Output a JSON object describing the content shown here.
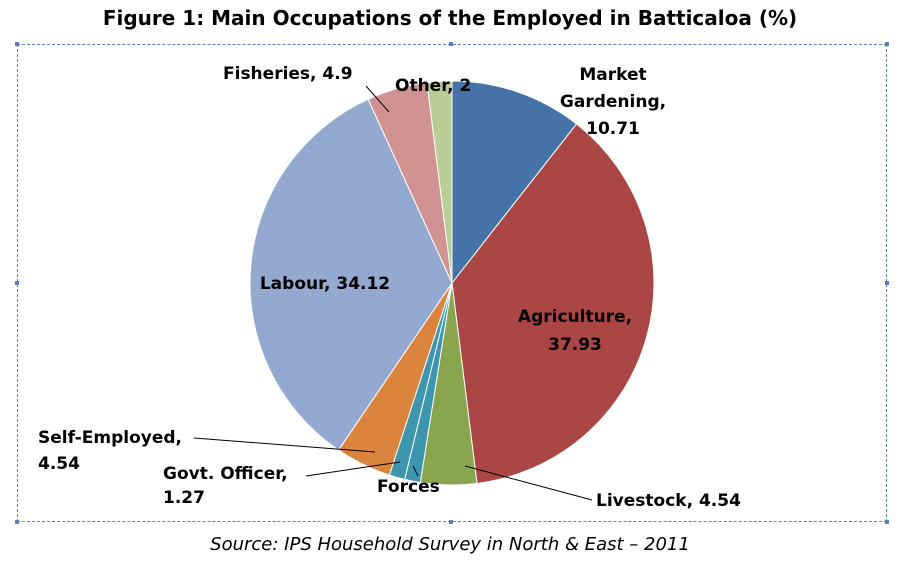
{
  "chart_data": {
    "type": "pie",
    "title": "Figure 1: Main Occupations of the Employed in Batticaloa (%)",
    "source": "Source: IPS Household Survey in North & East – 2011",
    "slices": [
      {
        "name": "Market Gardening",
        "value": 10.71,
        "label_lines": [
          "Market",
          "Gardening,",
          "10.71"
        ],
        "color": "#4572A7"
      },
      {
        "name": "Agriculture",
        "value": 37.93,
        "label_lines": [
          "Agriculture,",
          "37.93"
        ],
        "color": "#AA4643"
      },
      {
        "name": "Livestock",
        "value": 4.54,
        "label_lines": [
          "Livestock, 4.54"
        ],
        "color": "#89A54E"
      },
      {
        "name": "Forces",
        "value": 1.27,
        "label_lines": [
          "Forces"
        ],
        "color": "#3D96AE"
      },
      {
        "name": "Govt. Officer",
        "value": 1.27,
        "label_lines": [
          "Govt. Officer,",
          "1.27"
        ],
        "color": "#3D96AE"
      },
      {
        "name": "Self-Employed",
        "value": 4.54,
        "label_lines": [
          "Self-Employed,",
          "4.54"
        ],
        "color": "#DB843D"
      },
      {
        "name": "Labour",
        "value": 34.12,
        "label_lines": [
          "Labour, 34.12"
        ],
        "color": "#93A9CF"
      },
      {
        "name": "Fisheries",
        "value": 4.9,
        "label_lines": [
          "Fisheries, 4.9"
        ],
        "color": "#D19392"
      },
      {
        "name": "Other",
        "value": 2,
        "label_lines": [
          "Other, 2"
        ],
        "color": "#B9CD96"
      }
    ],
    "start_angle_deg": 0,
    "direction": "clockwise",
    "legend": "none"
  }
}
